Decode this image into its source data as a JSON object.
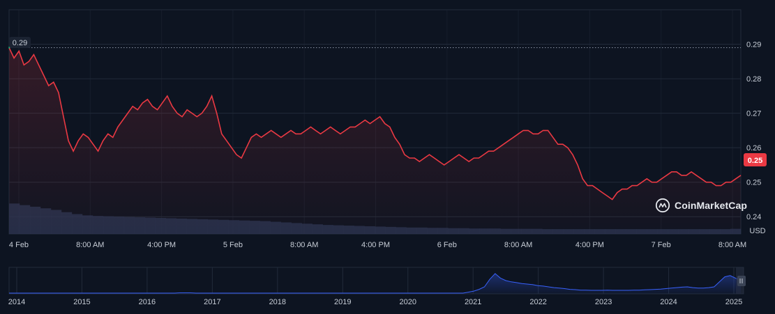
{
  "colors": {
    "background": "#0d1421",
    "grid": "#222b3a",
    "price_line": "#ea3943",
    "volume_fill": "#2a3553",
    "overview_line": "#3861fb",
    "open_marker": "#16c784",
    "axis_text": "#c7cdd6",
    "current_badge": "#ea3943"
  },
  "brand": {
    "name": "CoinMarketCap",
    "icon": "coinmarketcap-logo-icon"
  },
  "chart_data": [
    {
      "type": "line",
      "title": "",
      "currency_label": "USD",
      "ylim": [
        0.235,
        0.3
      ],
      "y_ticks": [
        "0.29",
        "0.28",
        "0.27",
        "0.26",
        "0.25",
        "0.24"
      ],
      "x_ticks": [
        "4 Feb",
        "8:00 AM",
        "4:00 PM",
        "5 Feb",
        "8:00 AM",
        "4:00 PM",
        "6 Feb",
        "8:00 AM",
        "4:00 PM",
        "7 Feb",
        "8:00 AM"
      ],
      "open_price_label": "0.29",
      "current_price_label": "0.25",
      "grid": true,
      "series": [
        {
          "values": [
            0.289,
            0.286,
            0.288,
            0.284,
            0.285,
            0.287,
            0.284,
            0.281,
            0.278,
            0.279,
            0.276,
            0.269,
            0.262,
            0.259,
            0.262,
            0.264,
            0.263,
            0.261,
            0.259,
            0.262,
            0.264,
            0.263,
            0.266,
            0.268,
            0.27,
            0.272,
            0.271,
            0.273,
            0.274,
            0.272,
            0.271,
            0.273,
            0.275,
            0.272,
            0.27,
            0.269,
            0.271,
            0.27,
            0.269,
            0.27,
            0.272,
            0.275,
            0.27,
            0.264,
            0.262,
            0.26,
            0.258,
            0.257,
            0.26,
            0.263,
            0.264,
            0.263,
            0.264,
            0.265,
            0.264,
            0.263,
            0.264,
            0.265,
            0.264,
            0.264,
            0.265,
            0.266,
            0.265,
            0.264,
            0.265,
            0.266,
            0.265,
            0.264,
            0.265,
            0.266,
            0.266,
            0.267,
            0.268,
            0.267,
            0.268,
            0.269,
            0.267,
            0.266,
            0.263,
            0.261,
            0.258,
            0.257,
            0.257,
            0.256,
            0.257,
            0.258,
            0.257,
            0.256,
            0.255,
            0.256,
            0.257,
            0.258,
            0.257,
            0.256,
            0.257,
            0.257,
            0.258,
            0.259,
            0.259,
            0.26,
            0.261,
            0.262,
            0.263,
            0.264,
            0.265,
            0.265,
            0.264,
            0.264,
            0.265,
            0.265,
            0.263,
            0.261,
            0.261,
            0.26,
            0.258,
            0.255,
            0.251,
            0.249,
            0.249,
            0.248,
            0.247,
            0.246,
            0.245,
            0.247,
            0.248,
            0.248,
            0.249,
            0.249,
            0.25,
            0.251,
            0.25,
            0.25,
            0.251,
            0.252,
            0.253,
            0.253,
            0.252,
            0.252,
            0.253,
            0.252,
            0.251,
            0.25,
            0.25,
            0.249,
            0.249,
            0.25,
            0.25,
            0.251,
            0.252
          ]
        }
      ],
      "volume": [
        0.95,
        0.9,
        0.85,
        0.8,
        0.75,
        0.68,
        0.62,
        0.58,
        0.56,
        0.55,
        0.54,
        0.53,
        0.52,
        0.51,
        0.5,
        0.49,
        0.48,
        0.47,
        0.46,
        0.45,
        0.44,
        0.43,
        0.42,
        0.41,
        0.4,
        0.38,
        0.36,
        0.34,
        0.32,
        0.3,
        0.28,
        0.27,
        0.26,
        0.25,
        0.24,
        0.23,
        0.22,
        0.21,
        0.2,
        0.2,
        0.19,
        0.19,
        0.18,
        0.18,
        0.17,
        0.17,
        0.17,
        0.16,
        0.16,
        0.16,
        0.16,
        0.15,
        0.15,
        0.15,
        0.15,
        0.15,
        0.15,
        0.15,
        0.15,
        0.15,
        0.15,
        0.15,
        0.15,
        0.15,
        0.15,
        0.15,
        0.15,
        0.15,
        0.15,
        0.16
      ]
    },
    {
      "type": "area",
      "x_ticks": [
        "2014",
        "2015",
        "2016",
        "2017",
        "2018",
        "2019",
        "2020",
        "2021",
        "2022",
        "2023",
        "2024",
        "2025"
      ],
      "series": [
        {
          "values": [
            0,
            0,
            0,
            0,
            0,
            0,
            0,
            0,
            0,
            0,
            0,
            0,
            0,
            0,
            0,
            0,
            0,
            0,
            0,
            0,
            0,
            0,
            0,
            0,
            0,
            0,
            0,
            0,
            0,
            0,
            0,
            0,
            0.01,
            0.01,
            0.01,
            0,
            0,
            0,
            0,
            0,
            0,
            0,
            0,
            0,
            0,
            0,
            0,
            0,
            0,
            0,
            0,
            0,
            0,
            0,
            0,
            0,
            0,
            0,
            0,
            0,
            0,
            0,
            0,
            0,
            0,
            0,
            0,
            0,
            0,
            0,
            0,
            0,
            0,
            0,
            0,
            0,
            0,
            0,
            0,
            0,
            0,
            0,
            0,
            0,
            0,
            0,
            0.04,
            0.08,
            0.15,
            0.25,
            0.55,
            0.78,
            0.6,
            0.5,
            0.45,
            0.42,
            0.38,
            0.36,
            0.34,
            0.3,
            0.28,
            0.25,
            0.22,
            0.2,
            0.18,
            0.15,
            0.14,
            0.12,
            0.12,
            0.11,
            0.11,
            0.11,
            0.12,
            0.11,
            0.11,
            0.11,
            0.11,
            0.12,
            0.12,
            0.13,
            0.14,
            0.15,
            0.16,
            0.18,
            0.2,
            0.22,
            0.24,
            0.25,
            0.22,
            0.2,
            0.2,
            0.22,
            0.25,
            0.45,
            0.65,
            0.7,
            0.6,
            0.5
          ]
        }
      ]
    }
  ]
}
